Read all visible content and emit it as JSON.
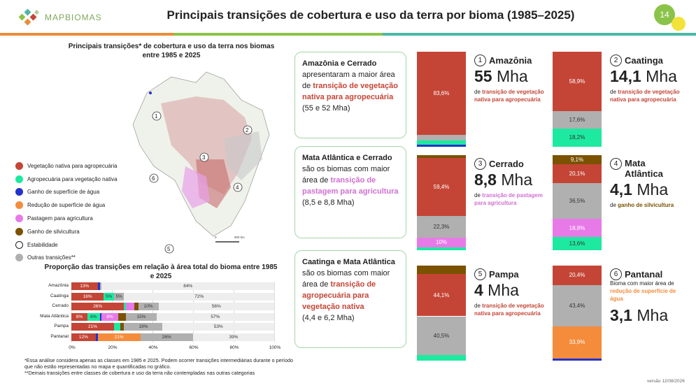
{
  "header": {
    "logo_text": "MAPBIOMAS",
    "title": "Principais transições de cobertura e uso da terra por bioma (1985–2025)",
    "page_number": "14"
  },
  "map": {
    "title": "Principais transições* de cobertura e uso da terra nos biomas entre 1985 e 2025",
    "markers": [
      "1",
      "2",
      "3",
      "4",
      "5",
      "6"
    ],
    "scale_labels": [
      "0",
      "600 km"
    ]
  },
  "legend": [
    {
      "label": "Vegetação nativa para agropecuária",
      "color": "#c44536"
    },
    {
      "label": "Agropecuária para vegetação nativa",
      "color": "#1de9a0"
    },
    {
      "label": "Ganho de superfície de água",
      "color": "#2233cc"
    },
    {
      "label": "Redução de superfície de água",
      "color": "#f48c3c"
    },
    {
      "label": "Pastagem para agricultura",
      "color": "#e87ae8"
    },
    {
      "label": "Ganho de silvicultura",
      "color": "#7a5200"
    },
    {
      "label": "Estabilidade",
      "color": "#ffffff"
    },
    {
      "label": "Outras transições**",
      "color": "#b0b0b0"
    }
  ],
  "hchart": {
    "title": "Proporção das transições em relação à área total do bioma entre 1985 e 2025",
    "ticks": [
      "0%",
      "20%",
      "40%",
      "60%",
      "80%",
      "100%"
    ],
    "rows": [
      {
        "name": "Amazônia",
        "segs": [
          {
            "v": 13,
            "c": "#c44536",
            "t": "13%"
          },
          {
            "v": 1,
            "c": "#2233cc",
            "t": ""
          },
          {
            "v": 1,
            "c": "#b0b0b0",
            "t": ""
          }
        ],
        "stable": "84%"
      },
      {
        "name": "Caatinga",
        "segs": [
          {
            "v": 16,
            "c": "#c44536",
            "t": "16%"
          },
          {
            "v": 5,
            "c": "#1de9a0",
            "t": "5%"
          },
          {
            "v": 5,
            "c": "#b0b0b0",
            "t": "5%"
          }
        ],
        "stable": "72%"
      },
      {
        "name": "Cerrado",
        "segs": [
          {
            "v": 26,
            "c": "#c44536",
            "t": "26%"
          },
          {
            "v": 1,
            "c": "#1de9a0",
            "t": ""
          },
          {
            "v": 4,
            "c": "#e87ae8",
            "t": ""
          },
          {
            "v": 2,
            "c": "#7a5200",
            "t": ""
          },
          {
            "v": 10,
            "c": "#b0b0b0",
            "t": "10%"
          }
        ],
        "stable": "56%"
      },
      {
        "name": "Mata Atlântica",
        "segs": [
          {
            "v": 8,
            "c": "#c44536",
            "t": "8%"
          },
          {
            "v": 6,
            "c": "#1de9a0",
            "t": "6%"
          },
          {
            "v": 1,
            "c": "#2233cc",
            "t": ""
          },
          {
            "v": 8,
            "c": "#e87ae8",
            "t": "8%"
          },
          {
            "v": 4,
            "c": "#7a5200",
            "t": ""
          },
          {
            "v": 15,
            "c": "#b0b0b0",
            "t": "15%"
          }
        ],
        "stable": "57%"
      },
      {
        "name": "Pampa",
        "segs": [
          {
            "v": 21,
            "c": "#c44536",
            "t": "21%"
          },
          {
            "v": 3,
            "c": "#1de9a0",
            "t": ""
          },
          {
            "v": 2,
            "c": "#7a5200",
            "t": ""
          },
          {
            "v": 19,
            "c": "#b0b0b0",
            "t": "19%"
          }
        ],
        "stable": "53%"
      },
      {
        "name": "Pantanal",
        "segs": [
          {
            "v": 12,
            "c": "#c44536",
            "t": "12%"
          },
          {
            "v": 1,
            "c": "#2233cc",
            "t": ""
          },
          {
            "v": 21,
            "c": "#f48c3c",
            "t": "21%"
          },
          {
            "v": 26,
            "c": "#b0b0b0",
            "t": "26%"
          }
        ],
        "stable": "39%"
      }
    ]
  },
  "footnote": "*Essa análise considera apenas as classes em 1985 e 2025. Podem ocorrer transições intermediárias durante o período que não estão representadas no mapa e quantificadas no gráfico.\n**Demais transições entre classes de cobertura e uso da terra não contempladas nas outras categorias",
  "version": "versão 12/08/2026",
  "cards": [
    {
      "bold": "Amazônia e Cerrado",
      "text": " apresentaram a maior área de ",
      "hl": "transição de vegetação nativa para agropecuária",
      "tail": "(55 e 52 Mha)",
      "hlclass": "hl"
    },
    {
      "bold": "Mata Atlântica e Cerrado",
      "text": " são os biomas com maior área de ",
      "hl": "transição de pastagem para agricultura",
      "tail": "(8,5 e 8,8 Mha)",
      "hlclass": "hlp"
    },
    {
      "bold": "Caatinga e Mata Atlântica",
      "text": " são os biomas com maior área de ",
      "hl": "transição de agropecuária para vegetação nativa",
      "tail": "(4,4 e 6,2 Mha)",
      "hlclass": "hl"
    }
  ],
  "biomes": [
    {
      "num": "1",
      "name": "Amazônia",
      "value": "55",
      "unit": " Mha",
      "desc_pre": "de ",
      "desc_hl": "transição de vegetação nativa para agropecuária",
      "hlcolor": "#c44536",
      "segs": [
        {
          "v": 83.6,
          "c": "#c44536",
          "t": "83,6%"
        },
        {
          "v": 5.5,
          "c": "#b0b0b0",
          "t": ""
        },
        {
          "v": 4,
          "c": "#1de9a0",
          "t": ""
        },
        {
          "v": 2.4,
          "c": "#2233cc",
          "t": ""
        }
      ]
    },
    {
      "num": "2",
      "name": "Caatinga",
      "value": "14,1",
      "unit": " Mha",
      "desc_pre": "de ",
      "desc_hl": "transição de vegetação nativa para agropecuária",
      "hlcolor": "#c44536",
      "segs": [
        {
          "v": 58.9,
          "c": "#c44536",
          "t": "58,9%"
        },
        {
          "v": 17.6,
          "c": "#b0b0b0",
          "t": "17,6%"
        },
        {
          "v": 18.2,
          "c": "#1de9a0",
          "t": "18,2%"
        }
      ]
    },
    {
      "num": "3",
      "name": "Cerrado",
      "value": "8,8",
      "unit": " Mha",
      "desc_pre": "de ",
      "desc_hl": "transição de pastagem para agricultura",
      "hlcolor": "#d070d0",
      "segs": [
        {
          "v": 3,
          "c": "#7a5200",
          "t": ""
        },
        {
          "v": 59.4,
          "c": "#c44536",
          "t": "59,4%"
        },
        {
          "v": 22.3,
          "c": "#b0b0b0",
          "t": "22,3%"
        },
        {
          "v": 10,
          "c": "#e87ae8",
          "t": "10%"
        },
        {
          "v": 3,
          "c": "#1de9a0",
          "t": ""
        }
      ]
    },
    {
      "num": "4",
      "name": "Mata Atlântica",
      "value": "4,1",
      "unit": " Mha",
      "desc_pre": "de ",
      "desc_hl": "ganho de silvicultura",
      "hlcolor": "#7a5200",
      "segs": [
        {
          "v": 9.1,
          "c": "#7a5200",
          "t": "9,1%"
        },
        {
          "v": 20.1,
          "c": "#c44536",
          "t": "20,1%"
        },
        {
          "v": 36.5,
          "c": "#b0b0b0",
          "t": "36,5%"
        },
        {
          "v": 18.8,
          "c": "#e87ae8",
          "t": "18,8%"
        },
        {
          "v": 13.6,
          "c": "#1de9a0",
          "t": "13,6%"
        }
      ]
    },
    {
      "num": "5",
      "name": "Pampa",
      "value": "4",
      "unit": " Mha",
      "desc_pre": "de ",
      "desc_hl": "transição de vegetação nativa para agropecuária",
      "hlcolor": "#c44536",
      "segs": [
        {
          "v": 9,
          "c": "#7a5200",
          "t": ""
        },
        {
          "v": 44.1,
          "c": "#c44536",
          "t": "44,1%"
        },
        {
          "v": 40.5,
          "c": "#b0b0b0",
          "t": "40,5%"
        },
        {
          "v": 6,
          "c": "#1de9a0",
          "t": ""
        }
      ]
    },
    {
      "num": "6",
      "name": "Pantanal",
      "value": "3,1",
      "unit": " Mha",
      "desc_pre": "Bioma com maior área de ",
      "desc_hl": "redução de superfície de água",
      "hlcolor": "#f48c3c",
      "segs": [
        {
          "v": 20.4,
          "c": "#c44536",
          "t": "20,4%"
        },
        {
          "v": 43.4,
          "c": "#b0b0b0",
          "t": "43,4%"
        },
        {
          "v": 33.9,
          "c": "#f48c3c",
          "t": "33,9%"
        },
        {
          "v": 2.3,
          "c": "#2233cc",
          "t": ""
        }
      ]
    }
  ]
}
